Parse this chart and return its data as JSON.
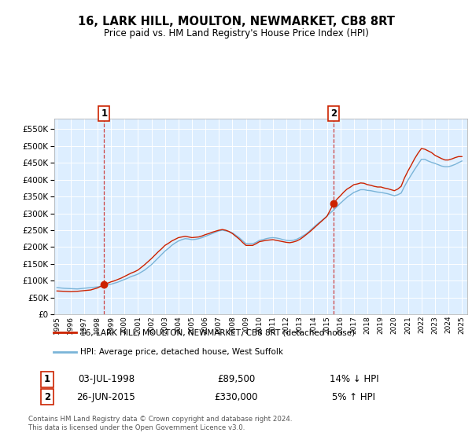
{
  "title": "16, LARK HILL, MOULTON, NEWMARKET, CB8 8RT",
  "subtitle": "Price paid vs. HM Land Registry's House Price Index (HPI)",
  "legend_line1": "16, LARK HILL, MOULTON, NEWMARKET, CB8 8RT (detached house)",
  "legend_line2": "HPI: Average price, detached house, West Suffolk",
  "annotation1_date": "03-JUL-1998",
  "annotation1_price": "£89,500",
  "annotation1_hpi": "14% ↓ HPI",
  "annotation2_date": "26-JUN-2015",
  "annotation2_price": "£330,000",
  "annotation2_hpi": "5% ↑ HPI",
  "footer": "Contains HM Land Registry data © Crown copyright and database right 2024.\nThis data is licensed under the Open Government Licence v3.0.",
  "hpi_color": "#7ab4d8",
  "price_color": "#cc2200",
  "plot_bg": "#ddeeff",
  "ylim": [
    0,
    580000
  ],
  "yticks": [
    0,
    50000,
    100000,
    150000,
    200000,
    250000,
    300000,
    350000,
    400000,
    450000,
    500000,
    550000
  ],
  "x_start": 1994.8,
  "x_end": 2025.4,
  "marker1_x": 1998.5,
  "marker1_y": 89500,
  "marker2_x": 2015.5,
  "marker2_y": 330000,
  "vline1_x": 1998.5,
  "vline2_x": 2015.5,
  "hpi_data_x": [
    1995.0,
    1995.25,
    1995.5,
    1995.75,
    1996.0,
    1996.25,
    1996.5,
    1996.75,
    1997.0,
    1997.25,
    1997.5,
    1997.75,
    1998.0,
    1998.25,
    1998.5,
    1998.75,
    1999.0,
    1999.25,
    1999.5,
    1999.75,
    2000.0,
    2000.25,
    2000.5,
    2000.75,
    2001.0,
    2001.25,
    2001.5,
    2001.75,
    2002.0,
    2002.25,
    2002.5,
    2002.75,
    2003.0,
    2003.25,
    2003.5,
    2003.75,
    2004.0,
    2004.25,
    2004.5,
    2004.75,
    2005.0,
    2005.25,
    2005.5,
    2005.75,
    2006.0,
    2006.25,
    2006.5,
    2006.75,
    2007.0,
    2007.25,
    2007.5,
    2007.75,
    2008.0,
    2008.25,
    2008.5,
    2008.75,
    2009.0,
    2009.25,
    2009.5,
    2009.75,
    2010.0,
    2010.25,
    2010.5,
    2010.75,
    2011.0,
    2011.25,
    2011.5,
    2011.75,
    2012.0,
    2012.25,
    2012.5,
    2012.75,
    2013.0,
    2013.25,
    2013.5,
    2013.75,
    2014.0,
    2014.25,
    2014.5,
    2014.75,
    2015.0,
    2015.25,
    2015.5,
    2015.75,
    2016.0,
    2016.25,
    2016.5,
    2016.75,
    2017.0,
    2017.25,
    2017.5,
    2017.75,
    2018.0,
    2018.25,
    2018.5,
    2018.75,
    2019.0,
    2019.25,
    2019.5,
    2019.75,
    2020.0,
    2020.25,
    2020.5,
    2020.75,
    2021.0,
    2021.25,
    2021.5,
    2021.75,
    2022.0,
    2022.25,
    2022.5,
    2022.75,
    2023.0,
    2023.25,
    2023.5,
    2023.75,
    2024.0,
    2024.25,
    2024.5,
    2024.75,
    2025.0
  ],
  "hpi_data_y": [
    80000,
    79000,
    78000,
    77500,
    77000,
    76500,
    76000,
    77000,
    78000,
    79000,
    80000,
    81000,
    82000,
    84000,
    86000,
    88000,
    90000,
    93000,
    96000,
    100000,
    104000,
    108000,
    113000,
    116000,
    120000,
    126000,
    132000,
    140000,
    148000,
    158000,
    168000,
    178000,
    188000,
    196000,
    205000,
    212000,
    218000,
    222000,
    225000,
    224000,
    222000,
    223000,
    225000,
    228000,
    232000,
    236000,
    240000,
    244000,
    248000,
    250000,
    248000,
    246000,
    242000,
    235000,
    228000,
    219000,
    210000,
    210000,
    210000,
    214000,
    220000,
    222000,
    225000,
    227000,
    228000,
    227000,
    225000,
    222000,
    220000,
    219000,
    220000,
    223000,
    228000,
    234000,
    240000,
    249000,
    258000,
    267000,
    275000,
    283000,
    292000,
    301000,
    310000,
    320000,
    330000,
    339000,
    348000,
    355000,
    362000,
    366000,
    370000,
    370000,
    368000,
    367000,
    365000,
    363000,
    362000,
    360000,
    358000,
    355000,
    352000,
    355000,
    360000,
    380000,
    398000,
    414000,
    430000,
    445000,
    460000,
    460000,
    455000,
    451000,
    448000,
    444000,
    440000,
    438000,
    438000,
    441000,
    445000,
    450000,
    455000
  ],
  "price_data_x": [
    1995.0,
    1995.25,
    1995.5,
    1995.75,
    1996.0,
    1996.25,
    1996.5,
    1996.75,
    1997.0,
    1997.25,
    1997.5,
    1997.75,
    1998.0,
    1998.25,
    1998.5,
    1998.75,
    1999.0,
    1999.25,
    1999.5,
    1999.75,
    2000.0,
    2000.25,
    2000.5,
    2000.75,
    2001.0,
    2001.25,
    2001.5,
    2001.75,
    2002.0,
    2002.25,
    2002.5,
    2002.75,
    2003.0,
    2003.25,
    2003.5,
    2003.75,
    2004.0,
    2004.25,
    2004.5,
    2004.75,
    2005.0,
    2005.25,
    2005.5,
    2005.75,
    2006.0,
    2006.25,
    2006.5,
    2006.75,
    2007.0,
    2007.25,
    2007.5,
    2007.75,
    2008.0,
    2008.25,
    2008.5,
    2008.75,
    2009.0,
    2009.25,
    2009.5,
    2009.75,
    2010.0,
    2010.25,
    2010.5,
    2010.75,
    2011.0,
    2011.25,
    2011.5,
    2011.75,
    2012.0,
    2012.25,
    2012.5,
    2012.75,
    2013.0,
    2013.25,
    2013.5,
    2013.75,
    2014.0,
    2014.25,
    2014.5,
    2014.75,
    2015.0,
    2015.25,
    2015.5,
    2015.75,
    2016.0,
    2016.25,
    2016.5,
    2016.75,
    2017.0,
    2017.25,
    2017.5,
    2017.75,
    2018.0,
    2018.25,
    2018.5,
    2018.75,
    2019.0,
    2019.25,
    2019.5,
    2019.75,
    2020.0,
    2020.25,
    2020.5,
    2020.75,
    2021.0,
    2021.25,
    2021.5,
    2021.75,
    2022.0,
    2022.25,
    2022.5,
    2022.75,
    2023.0,
    2023.25,
    2023.5,
    2023.75,
    2024.0,
    2024.25,
    2024.5,
    2024.75,
    2025.0
  ],
  "price_data_y": [
    70000,
    69500,
    69000,
    68500,
    68000,
    68500,
    69000,
    70000,
    71000,
    72000,
    73000,
    76000,
    79000,
    84000,
    89500,
    93000,
    97000,
    100000,
    104000,
    108000,
    113000,
    118000,
    123000,
    127000,
    132000,
    140000,
    148000,
    157000,
    166000,
    176000,
    186000,
    195000,
    205000,
    211000,
    218000,
    223000,
    228000,
    230000,
    232000,
    230000,
    228000,
    229000,
    230000,
    233000,
    237000,
    240000,
    244000,
    247000,
    250000,
    252000,
    250000,
    246000,
    240000,
    232000,
    224000,
    214000,
    205000,
    205000,
    205000,
    210000,
    216000,
    218000,
    220000,
    221000,
    222000,
    220000,
    218000,
    216000,
    214000,
    213000,
    215000,
    218000,
    223000,
    230000,
    238000,
    246000,
    255000,
    264000,
    273000,
    282000,
    291000,
    310000,
    330000,
    342000,
    352000,
    363000,
    372000,
    378000,
    385000,
    387000,
    390000,
    389000,
    385000,
    383000,
    380000,
    378000,
    378000,
    375000,
    373000,
    370000,
    367000,
    372000,
    380000,
    405000,
    425000,
    443000,
    462000,
    478000,
    492000,
    490000,
    485000,
    480000,
    472000,
    467000,
    462000,
    458000,
    458000,
    461000,
    465000,
    468000,
    468000
  ],
  "xtick_years": [
    1995,
    1996,
    1997,
    1998,
    1999,
    2000,
    2001,
    2002,
    2003,
    2004,
    2005,
    2006,
    2007,
    2008,
    2009,
    2010,
    2011,
    2012,
    2013,
    2014,
    2015,
    2016,
    2017,
    2018,
    2019,
    2020,
    2021,
    2022,
    2023,
    2024,
    2025
  ]
}
